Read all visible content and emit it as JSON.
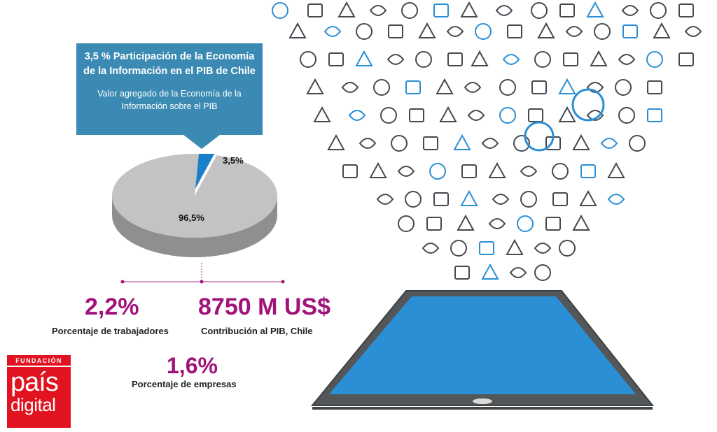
{
  "callout": {
    "title": "3,5 % Participación de la Economía de la Información en el PIB de Chile",
    "subtitle": "Valor agregado de la Economía de la Información sobre el PIB"
  },
  "chart_data": {
    "type": "pie",
    "title": "3,5 % Participación de la Economía de la Información en el PIB de Chile",
    "subtitle": "Valor agregado de la Economía de la Información sobre el PIB",
    "slices": [
      {
        "label": "3,5%",
        "value": 3.5,
        "color": "#1a7fc9"
      },
      {
        "label": "96,5%",
        "value": 96.5,
        "color": "#c3c3c3"
      }
    ]
  },
  "stats": [
    {
      "value": "2,2%",
      "caption": "Porcentaje de trabajadores"
    },
    {
      "value": "8750 M US$",
      "caption": "Contribución al PIB, Chile"
    },
    {
      "value": "1,6%",
      "caption": "Porcentaje de empresas"
    }
  ],
  "logo": {
    "line1": "FUNDACIÓN",
    "line2": "país",
    "line3": "digital"
  },
  "colors": {
    "accent": "#a0137a",
    "callout": "#3a8ab3",
    "icon": "#1f6fb3",
    "tablet_screen": "#2b8fd6"
  },
  "icons": [
    "basket-icon",
    "globe-icon",
    "no-smoking-icon",
    "tv-icon",
    "tshirt-icon",
    "airplane-icon",
    "heart-icon",
    "cloud-icon",
    "music-note-icon",
    "clock-icon",
    "fork-icon",
    "spoon-icon",
    "camera-icon",
    "eiffel-tower-icon",
    "leaf-icon",
    "headphones-icon",
    "keyboard-icon",
    "microphone-icon",
    "basketball-icon",
    "cocktail-icon",
    "gear-icon",
    "umbrella-icon",
    "envelope-icon",
    "lock-icon",
    "hand-icon",
    "coffee-icon",
    "car-icon",
    "bicycle-icon",
    "dish-icon",
    "apple-icon"
  ]
}
